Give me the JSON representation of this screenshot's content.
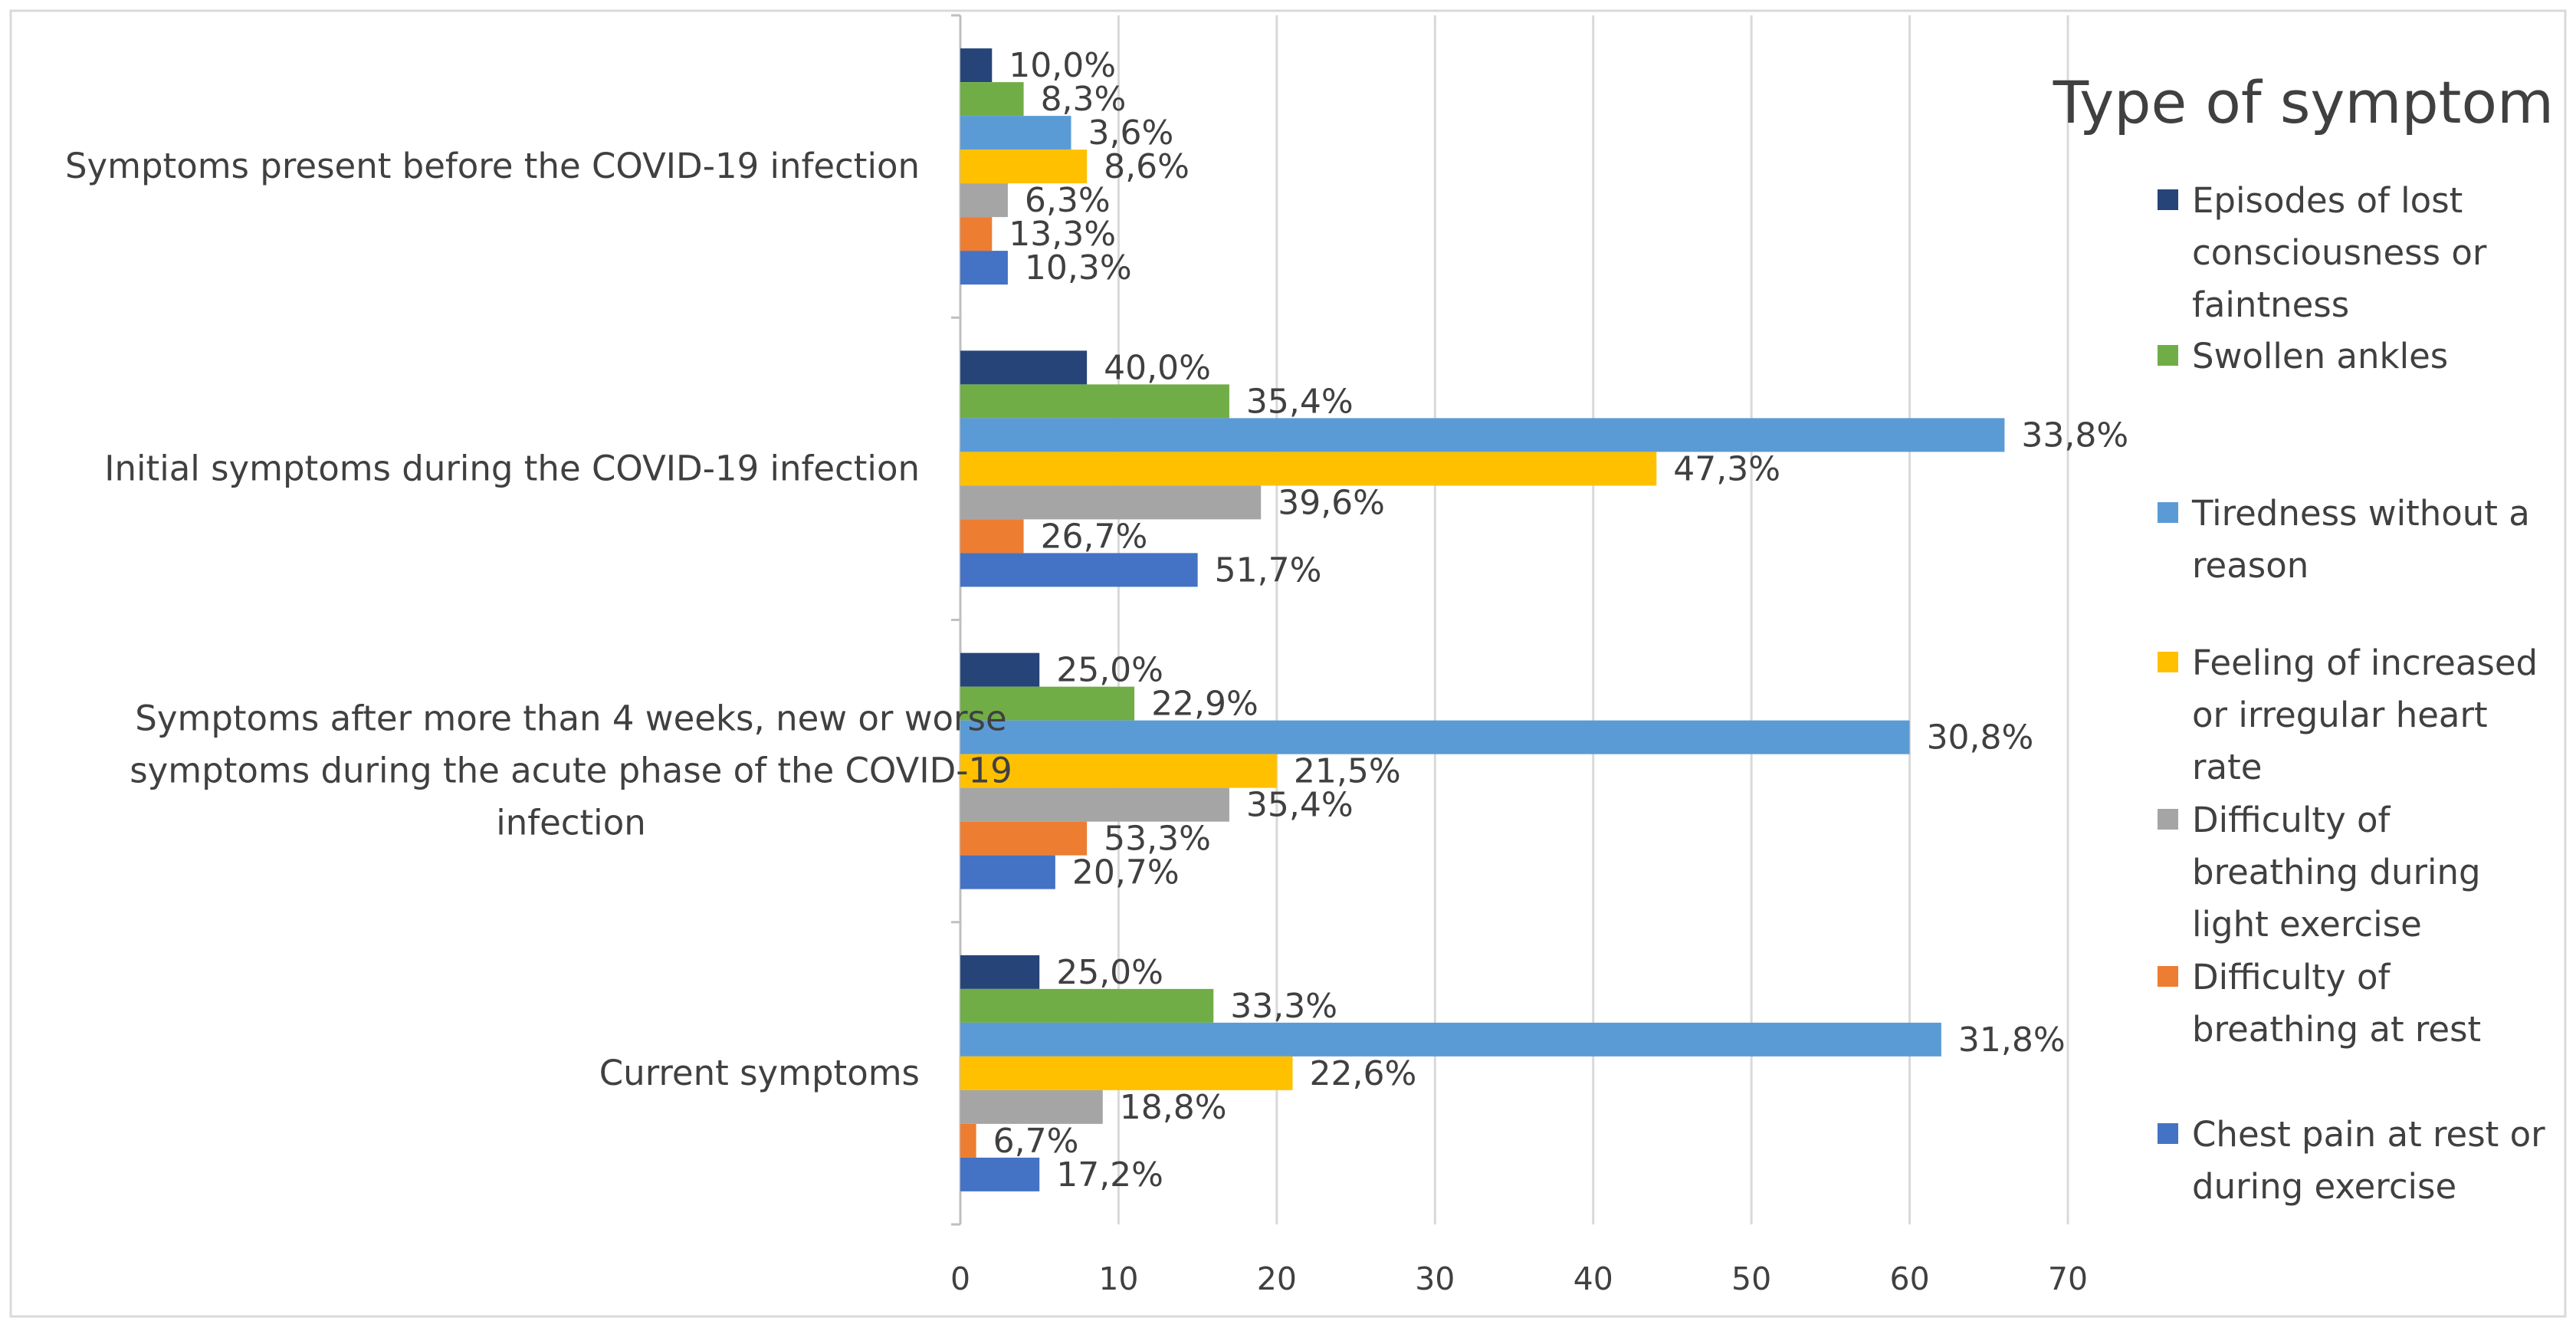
{
  "chart_data": {
    "type": "bar",
    "orientation": "horizontal",
    "grid": true,
    "legend_position": "right",
    "xlim": [
      0,
      70
    ],
    "x_ticks": [
      "0",
      "10",
      "20",
      "30",
      "40",
      "50",
      "60",
      "70"
    ],
    "categories": [
      {
        "lines": [
          "Symptoms present before the COVID-19 infection"
        ]
      },
      {
        "lines": [
          "Initial symptoms during the COVID-19 infection"
        ]
      },
      {
        "lines": [
          "Symptoms after more than 4 weeks, new or worse",
          "symptoms during the acute phase of the COVID-19",
          "infection"
        ]
      },
      {
        "lines": [
          "Current symptoms"
        ]
      }
    ],
    "legend": {
      "title": "Type of symptom",
      "items": [
        {
          "lines": [
            "Episodes of lost",
            "consciousness or",
            "faintness"
          ],
          "series": 0
        },
        {
          "lines": [
            "Swollen ankles"
          ],
          "series": 1
        },
        {
          "lines": [
            "Tiredness without a",
            "reason"
          ],
          "series": 2
        },
        {
          "lines": [
            "Feeling of increased",
            "or irregular heart",
            "rate"
          ],
          "series": 3
        },
        {
          "lines": [
            "Difficulty of",
            "breathing during",
            "light exercise"
          ],
          "series": 4
        },
        {
          "lines": [
            "Difficulty of",
            "breathing at rest"
          ],
          "series": 5
        },
        {
          "lines": [
            "Chest pain at rest or",
            "during exercise"
          ],
          "series": 6
        }
      ]
    },
    "series": [
      {
        "name": "Episodes of lost consciousness or faintness",
        "color": "#264478",
        "values": [
          2,
          8,
          5,
          5
        ],
        "labels": [
          "10,0%",
          "40,0%",
          "25,0%",
          "25,0%"
        ]
      },
      {
        "name": "Swollen ankles",
        "color": "#70AD47",
        "values": [
          4,
          17,
          11,
          16
        ],
        "labels": [
          "8,3%",
          "35,4%",
          "22,9%",
          "33,3%"
        ]
      },
      {
        "name": "Tiredness without a reason",
        "color": "#5B9BD5",
        "values": [
          7,
          66,
          60,
          62
        ],
        "labels": [
          "3,6%",
          "33,8%",
          "30,8%",
          "31,8%"
        ]
      },
      {
        "name": "Feeling of increased or irregular heart rate",
        "color": "#FFC000",
        "values": [
          8,
          44,
          20,
          21
        ],
        "labels": [
          "8,6%",
          "47,3%",
          "21,5%",
          "22,6%"
        ]
      },
      {
        "name": "Difficulty of breathing during light exercise",
        "color": "#A5A5A5",
        "values": [
          3,
          19,
          17,
          9
        ],
        "labels": [
          "6,3%",
          "39,6%",
          "35,4%",
          "18,8%"
        ]
      },
      {
        "name": "Difficulty of breathing at rest",
        "color": "#ED7D31",
        "values": [
          2,
          4,
          8,
          1
        ],
        "labels": [
          "13,3%",
          "26,7%",
          "53,3%",
          "6,7%"
        ]
      },
      {
        "name": "Chest pain at rest or during exercise",
        "color": "#4472C4",
        "values": [
          3,
          15,
          6,
          5
        ],
        "labels": [
          "10,3%",
          "51,7%",
          "20,7%",
          "17,2%"
        ]
      }
    ]
  }
}
